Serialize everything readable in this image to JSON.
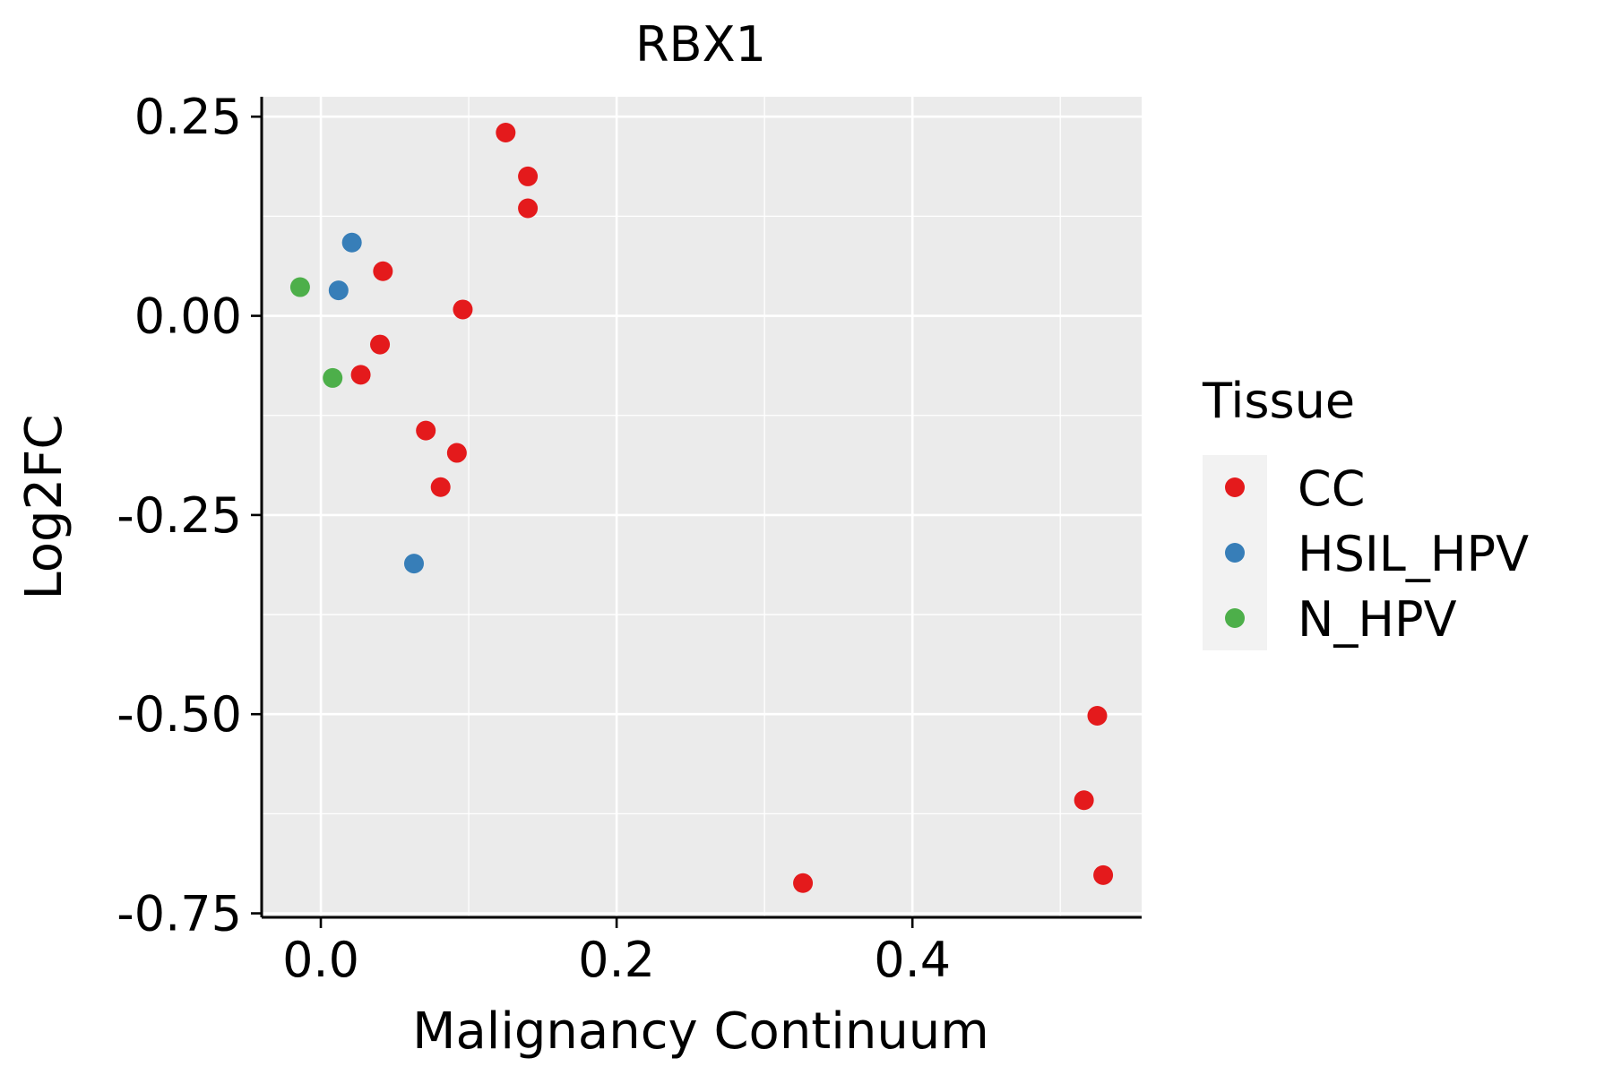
{
  "chart_data": {
    "type": "scatter",
    "title": "RBX1",
    "xlabel": "Malignancy Continuum",
    "ylabel": "Log2FC",
    "xlim": [
      -0.04,
      0.555
    ],
    "ylim": [
      -0.755,
      0.275
    ],
    "x_ticks": [
      0.0,
      0.2,
      0.4
    ],
    "x_tick_labels": [
      "0.0",
      "0.2",
      "0.4"
    ],
    "y_ticks": [
      0.25,
      0.0,
      -0.25,
      -0.5,
      -0.75
    ],
    "y_tick_labels": [
      "0.25",
      "0.00",
      "-0.25",
      "-0.50",
      "-0.75"
    ],
    "grid": true,
    "legend": {
      "title": "Tissue",
      "position": "right",
      "entries": [
        {
          "label": "CC",
          "color": "#E41A1C"
        },
        {
          "label": "HSIL_HPV",
          "color": "#377EB8"
        },
        {
          "label": "N_HPV",
          "color": "#4DAF4A"
        }
      ]
    },
    "series": [
      {
        "name": "CC",
        "color": "#E41A1C",
        "points": [
          {
            "x": 0.125,
            "y": 0.23
          },
          {
            "x": 0.14,
            "y": 0.175
          },
          {
            "x": 0.14,
            "y": 0.135
          },
          {
            "x": 0.042,
            "y": 0.056
          },
          {
            "x": 0.096,
            "y": 0.008
          },
          {
            "x": 0.04,
            "y": -0.036
          },
          {
            "x": 0.027,
            "y": -0.074
          },
          {
            "x": 0.071,
            "y": -0.144
          },
          {
            "x": 0.092,
            "y": -0.172
          },
          {
            "x": 0.081,
            "y": -0.215
          },
          {
            "x": 0.326,
            "y": -0.712
          },
          {
            "x": 0.525,
            "y": -0.502
          },
          {
            "x": 0.516,
            "y": -0.608
          },
          {
            "x": 0.529,
            "y": -0.702
          }
        ]
      },
      {
        "name": "HSIL_HPV",
        "color": "#377EB8",
        "points": [
          {
            "x": 0.021,
            "y": 0.092
          },
          {
            "x": 0.012,
            "y": 0.032
          },
          {
            "x": 0.063,
            "y": -0.311
          }
        ]
      },
      {
        "name": "N_HPV",
        "color": "#4DAF4A",
        "points": [
          {
            "x": -0.014,
            "y": 0.036
          },
          {
            "x": 0.008,
            "y": -0.078
          }
        ]
      }
    ]
  }
}
